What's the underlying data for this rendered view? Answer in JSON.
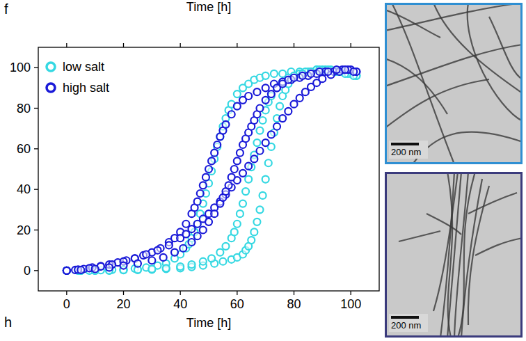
{
  "chart_data": {
    "type": "scatter",
    "panel_label": "f",
    "x_label": "Time [h]",
    "annotations": {
      "above_panel_axis_label": "Time [h]",
      "next_panel_label": "h"
    },
    "xlim": [
      -10,
      110
    ],
    "ylim": [
      -10,
      110
    ],
    "xticks": [
      0,
      20,
      40,
      60,
      80,
      100
    ],
    "yticks": [
      0,
      20,
      40,
      60,
      80,
      100
    ],
    "grid": false,
    "legend": "upper left",
    "marker": "circle",
    "series": [
      {
        "name": "low salt",
        "color": "#35d8e2",
        "x": [
          0,
          4,
          8,
          12,
          16,
          20,
          24,
          28,
          32,
          35,
          38,
          40,
          42,
          43,
          44,
          45,
          46,
          47,
          48,
          49,
          50,
          51,
          52,
          53,
          54,
          55,
          56,
          57,
          58,
          60,
          62,
          64,
          66,
          68,
          70,
          73,
          76,
          79,
          82,
          85,
          88,
          91,
          94,
          97,
          100,
          102,
          0,
          5,
          10,
          15,
          20,
          25,
          30,
          35,
          40,
          44,
          48,
          52,
          55,
          58,
          60,
          62,
          63,
          64,
          65,
          66,
          67,
          68,
          69,
          70,
          71,
          72,
          73,
          74,
          75,
          76,
          77,
          78,
          80,
          82,
          84,
          86,
          88,
          90,
          93,
          96,
          99,
          102,
          0,
          5,
          10,
          15,
          20,
          25,
          30,
          35,
          40,
          44,
          48,
          51,
          54,
          56,
          58,
          59,
          60,
          61,
          62,
          63,
          64,
          65,
          66,
          67,
          68,
          69,
          70,
          71,
          72,
          74,
          76,
          78,
          80,
          83,
          86,
          89,
          92,
          95,
          98,
          101
        ],
        "values": [
          0,
          0,
          0,
          0.2,
          0.4,
          0.6,
          1,
          1.5,
          2.5,
          3.5,
          6,
          8,
          11,
          13,
          16,
          19,
          23,
          28,
          33,
          38,
          43,
          49,
          55,
          61,
          66,
          71,
          75,
          79,
          82,
          87,
          90,
          92,
          94,
          95,
          96,
          97,
          97,
          98,
          98,
          98,
          99,
          99,
          98,
          98,
          97,
          96,
          0,
          0,
          0,
          0,
          0.2,
          0.3,
          0.5,
          0.8,
          1.2,
          1.8,
          2.5,
          3.5,
          4.5,
          5.5,
          6.5,
          8,
          10,
          12,
          15,
          19,
          24,
          30,
          37,
          45,
          53,
          61,
          68,
          75,
          81,
          86,
          89,
          92,
          95,
          97,
          98,
          98,
          99,
          99,
          99,
          98,
          97,
          96,
          0,
          0,
          0,
          0.1,
          0.3,
          0.5,
          0.8,
          1.2,
          2,
          3,
          4.5,
          6,
          9,
          12,
          16,
          19,
          23,
          28,
          33,
          39,
          45,
          51,
          57,
          63,
          69,
          74,
          79,
          83,
          86,
          90,
          93,
          95,
          96,
          97,
          98,
          99,
          99,
          98,
          97,
          96
        ]
      },
      {
        "name": "high salt",
        "color": "#1a1ad8",
        "x": [
          0,
          3,
          6,
          9,
          12,
          15,
          18,
          21,
          24,
          27,
          30,
          33,
          36,
          38,
          40,
          42,
          44,
          45,
          46,
          47,
          48,
          49,
          50,
          51,
          52,
          53,
          54,
          55,
          56,
          58,
          60,
          62,
          64,
          67,
          70,
          73,
          76,
          79,
          82,
          85,
          88,
          91,
          94,
          97,
          100,
          102,
          0,
          4,
          8,
          12,
          16,
          20,
          24,
          28,
          32,
          36,
          40,
          42,
          44,
          46,
          48,
          50,
          52,
          54,
          56,
          58,
          60,
          62,
          64,
          66,
          68,
          70,
          72,
          74,
          76,
          78,
          80,
          82,
          84,
          86,
          88,
          90,
          93,
          96,
          99,
          102,
          0,
          5,
          10,
          15,
          20,
          25,
          30,
          34,
          38,
          41,
          44,
          46,
          48,
          50,
          52,
          54,
          55,
          56,
          57,
          58,
          59,
          60,
          61,
          62,
          63,
          64,
          65,
          66,
          67,
          68,
          70,
          72,
          74,
          76,
          78,
          80,
          83,
          86,
          89,
          92,
          95,
          98,
          101
        ],
        "values": [
          0,
          0.3,
          0.8,
          1.5,
          2.2,
          3,
          4,
          5,
          6,
          7.5,
          9,
          11,
          14,
          16,
          19,
          23,
          28,
          31,
          34,
          38,
          42,
          46,
          50,
          54,
          58,
          62,
          66,
          69,
          72,
          77,
          81,
          84,
          86,
          88,
          90,
          92,
          93,
          94,
          95,
          96,
          97,
          98,
          98,
          99,
          99,
          98,
          0,
          0.5,
          1.2,
          2,
          3,
          4.5,
          6,
          8,
          10,
          12.5,
          16,
          18,
          20.5,
          23,
          25.5,
          28,
          31,
          34,
          37.5,
          41,
          44.5,
          48,
          51.5,
          55,
          59,
          63,
          67,
          71,
          75,
          78.5,
          82,
          85,
          88,
          90.5,
          92.5,
          94.5,
          96.5,
          98,
          99,
          98,
          0,
          0.3,
          0.8,
          1.5,
          2.5,
          3.5,
          5,
          6.5,
          9,
          11,
          14,
          17,
          20,
          24,
          28,
          33,
          36,
          39,
          42,
          46,
          50,
          54,
          58,
          62,
          65,
          68,
          71,
          74,
          77,
          80,
          84,
          87,
          90,
          92,
          94,
          95,
          96,
          97,
          98,
          98,
          99,
          99,
          98
        ]
      }
    ],
    "micrographs": [
      {
        "scale_bar": "200 nm",
        "color": "#2f8fd2"
      },
      {
        "scale_bar": "200 nm",
        "color": "#3b3b7c"
      }
    ]
  }
}
